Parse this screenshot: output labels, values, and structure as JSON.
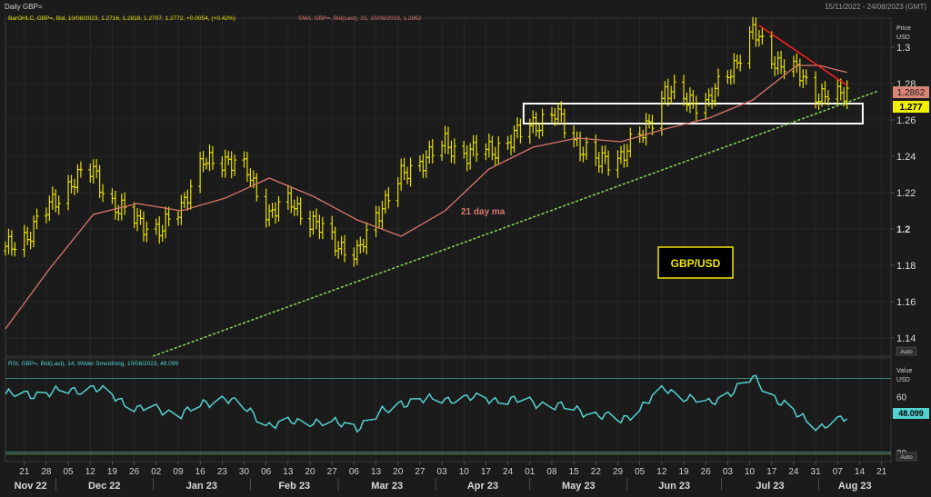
{
  "header": {
    "title": "Daily GBP=",
    "date_range": "15/11/2022 - 24/08/2023 (GMT)"
  },
  "price_panel": {
    "legend_ohlc": "BarOHLC, GBP=, Bid, 10/08/2023, 1.2716, 1.2818, 1.2707, 1.2772, +0.0054, (+0.42%)",
    "legend_sma": "SMA, GBP=, Bid(Last), 21, 10/08/2023, 1.2862",
    "axis_title_line1": "Price",
    "axis_title_line2": "USD",
    "y_ticks": [
      "1.3",
      "1.28",
      "1.26",
      "1.24",
      "1.22",
      "1.2",
      "1.18",
      "1.16",
      "1.14"
    ],
    "sma_badge": "1.2862",
    "price_badge": "1.277",
    "auto_label": "Auto",
    "sma_annotation": "21 day ma",
    "pair_label": "GBP/USD"
  },
  "rsi_panel": {
    "legend": "RSI, GBP=, Bid(Last), 14, Wilder Smoothing, 10/08/2023, 48.099",
    "axis_title_line1": "Value",
    "axis_title_line2": "USD",
    "y_ticks": [
      "60",
      "30"
    ],
    "value_badge": "48.099",
    "auto_label": "Auto"
  },
  "x_axis": {
    "day_ticks": [
      "21",
      "28",
      "05",
      "12",
      "19",
      "26",
      "02",
      "09",
      "16",
      "23",
      "30",
      "06",
      "13",
      "20",
      "27",
      "06",
      "13",
      "20",
      "27",
      "03",
      "10",
      "17",
      "24",
      "01",
      "08",
      "15",
      "22",
      "29",
      "05",
      "12",
      "19",
      "26",
      "03",
      "10",
      "17",
      "24",
      "31",
      "07",
      "14",
      "21"
    ],
    "month_labels": [
      "Nov 22",
      "Dec 22",
      "Jan 23",
      "Feb 23",
      "Mar 23",
      "Apr 23",
      "May 23",
      "Jun 23",
      "Jul 23",
      "Aug 23"
    ]
  },
  "colors": {
    "bars": "#e8e000",
    "sma": "#d9766c",
    "rsi": "#53d3cf",
    "support_line": "#8cd85a",
    "resistance_line": "#ff2020",
    "band_outline": "#ffffff",
    "price_badge_bg": "#f2ee00",
    "sma_badge_bg": "#d98476",
    "pair_label_border": "#f2e600"
  },
  "chart_data": [
    {
      "type": "ohlc",
      "title": "Daily GBP=",
      "ylabel": "Price USD",
      "ylim": [
        1.13,
        1.315
      ],
      "x_range": [
        "2022-11-15",
        "2023-08-24"
      ],
      "series": [
        {
          "name": "BarOHLC, GBP=, Bid",
          "kind": "close_path",
          "x": [
            "2022-11-15",
            "2022-11-22",
            "2022-11-29",
            "2022-12-06",
            "2022-12-13",
            "2022-12-20",
            "2022-12-27",
            "2023-01-03",
            "2023-01-10",
            "2023-01-17",
            "2023-01-24",
            "2023-01-31",
            "2023-02-07",
            "2023-02-14",
            "2023-02-21",
            "2023-02-28",
            "2023-03-07",
            "2023-03-14",
            "2023-03-21",
            "2023-03-28",
            "2023-04-04",
            "2023-04-11",
            "2023-04-18",
            "2023-04-25",
            "2023-05-02",
            "2023-05-09",
            "2023-05-16",
            "2023-05-23",
            "2023-05-30",
            "2023-06-06",
            "2023-06-13",
            "2023-06-20",
            "2023-06-27",
            "2023-07-04",
            "2023-07-11",
            "2023-07-18",
            "2023-07-25",
            "2023-08-01",
            "2023-08-08",
            "2023-08-10"
          ],
          "close": [
            1.188,
            1.197,
            1.212,
            1.226,
            1.232,
            1.211,
            1.206,
            1.197,
            1.214,
            1.236,
            1.239,
            1.231,
            1.208,
            1.215,
            1.203,
            1.193,
            1.185,
            1.211,
            1.228,
            1.239,
            1.246,
            1.242,
            1.243,
            1.249,
            1.258,
            1.263,
            1.248,
            1.236,
            1.241,
            1.252,
            1.276,
            1.271,
            1.27,
            1.288,
            1.308,
            1.293,
            1.286,
            1.274,
            1.272,
            1.2772
          ]
        },
        {
          "name": "SMA, GBP=, Bid(Last), 21",
          "x": [
            "2022-11-15",
            "2022-11-29",
            "2022-12-13",
            "2022-12-27",
            "2023-01-10",
            "2023-01-24",
            "2023-02-07",
            "2023-02-21",
            "2023-03-07",
            "2023-03-21",
            "2023-04-04",
            "2023-04-18",
            "2023-05-02",
            "2023-05-16",
            "2023-05-30",
            "2023-06-13",
            "2023-06-27",
            "2023-07-11",
            "2023-07-25",
            "2023-08-01",
            "2023-08-10"
          ],
          "values": [
            1.145,
            1.178,
            1.208,
            1.214,
            1.21,
            1.217,
            1.228,
            1.218,
            1.205,
            1.196,
            1.21,
            1.233,
            1.245,
            1.25,
            1.248,
            1.255,
            1.261,
            1.271,
            1.29,
            1.29,
            1.2862
          ]
        },
        {
          "name": "Support trend",
          "x": [
            "2023-01-01",
            "2023-08-20"
          ],
          "values": [
            1.13,
            1.276
          ]
        },
        {
          "name": "Resistance trend",
          "x": [
            "2023-07-13",
            "2023-08-10"
          ],
          "values": [
            1.312,
            1.279
          ]
        }
      ],
      "last": {
        "date": "10/08/2023",
        "open": 1.2716,
        "high": 1.2818,
        "low": 1.2707,
        "close": 1.2772,
        "change": 0.0054,
        "change_pct": 0.42
      },
      "annotations": [
        "21 day ma",
        "GBP/USD"
      ],
      "highlight_zone": {
        "x": [
          "2023-04-29",
          "2023-08-15"
        ],
        "y": [
          1.258,
          1.269
        ]
      }
    },
    {
      "type": "line",
      "title": "RSI, GBP=, Bid(Last), 14, Wilder Smoothing",
      "ylabel": "Value USD",
      "ylim": [
        25,
        80
      ],
      "reference_lines": [
        70,
        30
      ],
      "series": [
        {
          "name": "RSI",
          "x": [
            "2022-11-15",
            "2022-11-29",
            "2022-12-13",
            "2022-12-27",
            "2023-01-10",
            "2023-01-24",
            "2023-02-07",
            "2023-02-21",
            "2023-03-07",
            "2023-03-21",
            "2023-04-04",
            "2023-04-18",
            "2023-05-02",
            "2023-05-16",
            "2023-05-30",
            "2023-06-13",
            "2023-06-27",
            "2023-07-11",
            "2023-07-25",
            "2023-08-01",
            "2023-08-10"
          ],
          "values": [
            61,
            62,
            65,
            54,
            51,
            60,
            45,
            47,
            44,
            57,
            59,
            59,
            57,
            53,
            47,
            64,
            56,
            70,
            50,
            44,
            48.1
          ]
        }
      ]
    }
  ]
}
